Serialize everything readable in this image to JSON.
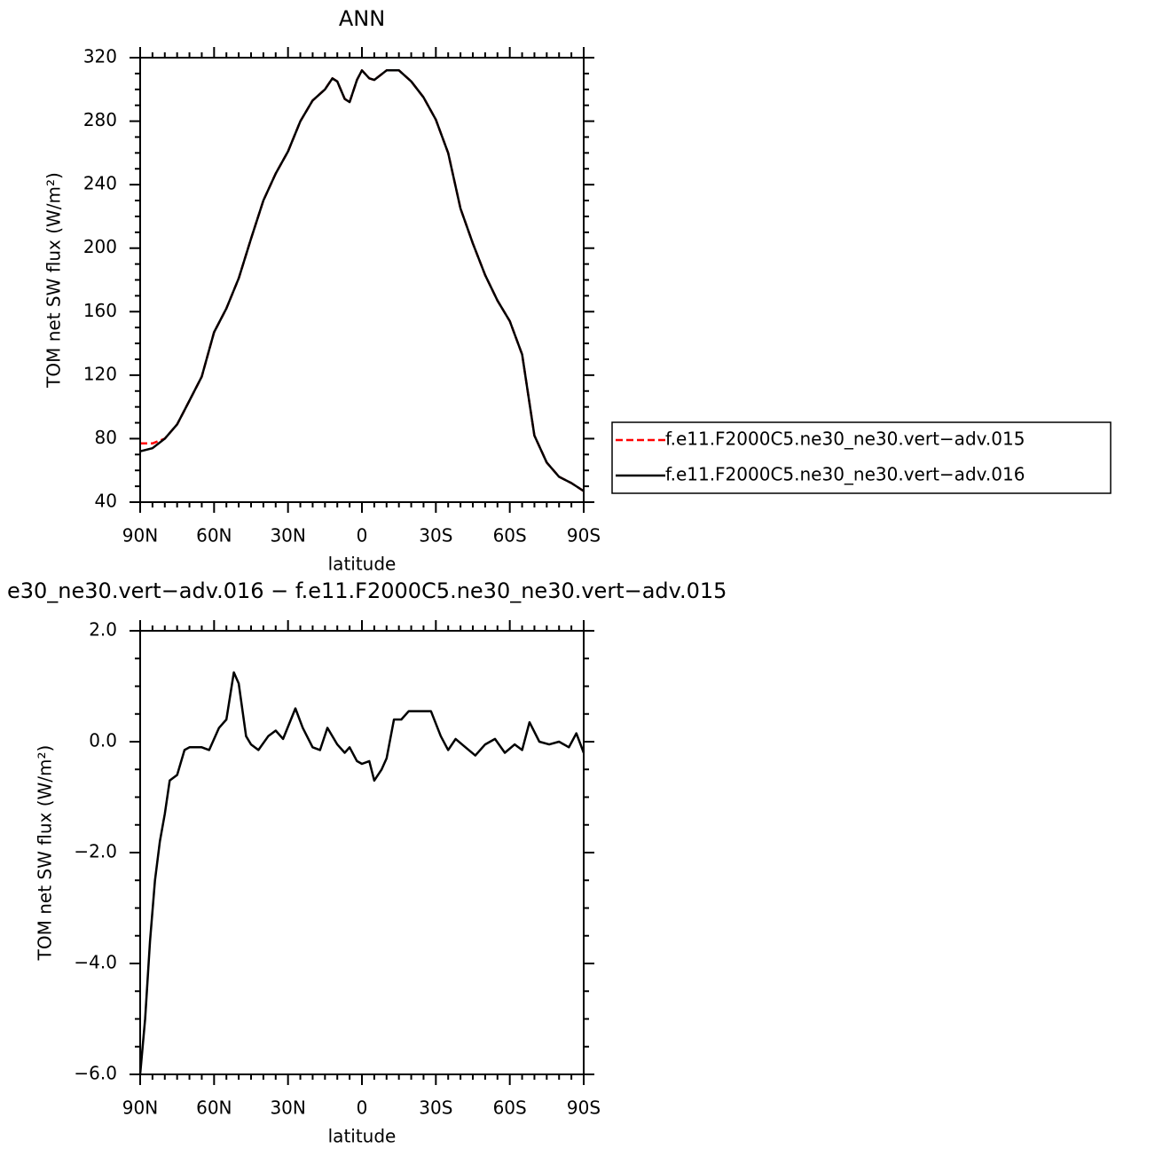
{
  "chart_data": [
    {
      "type": "line",
      "title": "ANN",
      "xlabel": "latitude",
      "ylabel": "TOM net SW flux (W/m²)",
      "x": [
        90,
        85,
        80,
        75,
        70,
        65,
        60,
        55,
        50,
        45,
        40,
        35,
        30,
        25,
        20,
        15,
        12,
        10,
        7,
        5,
        2,
        0,
        -3,
        -5,
        -10,
        -15,
        -20,
        -25,
        -30,
        -35,
        -40,
        -45,
        -50,
        -55,
        -60,
        -65,
        -70,
        -75,
        -80,
        -85,
        -90
      ],
      "series": [
        {
          "name": "f.e11.F2000C5.ne30_ne30.vert−adv.015",
          "color": "#ff0000",
          "dash": true,
          "values": [
            77,
            77,
            80,
            89,
            104,
            119,
            147,
            162,
            181,
            206,
            230,
            247,
            261,
            280,
            293,
            300,
            307,
            305,
            294,
            292,
            306,
            312,
            307,
            306,
            312,
            312,
            305,
            295,
            281,
            260,
            225,
            203,
            183,
            167,
            154,
            133,
            82,
            65,
            56,
            52,
            47
          ]
        },
        {
          "name": "f.e11.F2000C5.ne30_ne30.vert−adv.016",
          "color": "#000000",
          "dash": false,
          "values": [
            72,
            74,
            80,
            89,
            104,
            119,
            147,
            162,
            181,
            206,
            230,
            247,
            261,
            280,
            293,
            300,
            307,
            305,
            294,
            292,
            306,
            312,
            307,
            306,
            312,
            312,
            305,
            295,
            281,
            260,
            225,
            203,
            183,
            167,
            154,
            133,
            82,
            65,
            56,
            52,
            47
          ]
        }
      ],
      "xlim": [
        90,
        -90
      ],
      "ylim": [
        40,
        320
      ],
      "xticks": [
        {
          "value": 90,
          "label": "90N"
        },
        {
          "value": 60,
          "label": "60N"
        },
        {
          "value": 30,
          "label": "30N"
        },
        0,
        {
          "value": -30,
          "label": "30S"
        },
        {
          "value": -60,
          "label": "60S"
        },
        {
          "value": -90,
          "label": "90S"
        }
      ],
      "yticks": [
        40,
        80,
        120,
        160,
        200,
        240,
        280,
        320
      ],
      "xminor": [
        85,
        80,
        75,
        70,
        65,
        55,
        50,
        45,
        40,
        35,
        25,
        20,
        15,
        10,
        5,
        -5,
        -10,
        -15,
        -20,
        -25,
        -35,
        -40,
        -45,
        -50,
        -55,
        -65,
        -70,
        -75,
        -80,
        -85
      ],
      "yminor": [
        50,
        60,
        70,
        90,
        100,
        110,
        130,
        140,
        150,
        170,
        180,
        190,
        210,
        220,
        230,
        250,
        260,
        270,
        290,
        300,
        310
      ],
      "legend": "right"
    },
    {
      "type": "line",
      "title": "e30_ne30.vert−adv.016 − f.e11.F2000C5.ne30_ne30.vert−adv.015",
      "xlabel": "latitude",
      "ylabel": "TOM net SW flux (W/m²)",
      "x": [
        90,
        88,
        86,
        84,
        82,
        80,
        78,
        75,
        72,
        70,
        65,
        62,
        58,
        55,
        52,
        50,
        47,
        45,
        42,
        38,
        35,
        32,
        27,
        24,
        20,
        17,
        14,
        10,
        7,
        5,
        2,
        0,
        -3,
        -5,
        -8,
        -10,
        -13,
        -16,
        -19,
        -22,
        -25,
        -28,
        -32,
        -35,
        -38,
        -42,
        -46,
        -50,
        -54,
        -58,
        -62,
        -65,
        -68,
        -72,
        -76,
        -80,
        -84,
        -87,
        -90
      ],
      "series": [
        {
          "color": "#000000",
          "dash": false,
          "values": [
            -6.0,
            -5.0,
            -3.6,
            -2.5,
            -1.8,
            -1.3,
            -0.7,
            -0.6,
            -0.15,
            -0.1,
            -0.1,
            -0.15,
            0.25,
            0.4,
            1.25,
            1.05,
            0.1,
            -0.05,
            -0.15,
            0.1,
            0.2,
            0.05,
            0.6,
            0.25,
            -0.1,
            -0.15,
            0.25,
            -0.05,
            -0.2,
            -0.1,
            -0.35,
            -0.4,
            -0.35,
            -0.7,
            -0.5,
            -0.3,
            0.4,
            0.4,
            0.55,
            0.55,
            0.55,
            0.55,
            0.1,
            -0.15,
            0.05,
            -0.1,
            -0.25,
            -0.05,
            0.05,
            -0.2,
            -0.05,
            -0.15,
            0.35,
            0,
            -0.05,
            0,
            -0.1,
            0.15,
            -0.2
          ]
        }
      ],
      "xlim": [
        90,
        -90
      ],
      "ylim": [
        -6,
        2
      ],
      "xticks": [
        {
          "value": 90,
          "label": "90N"
        },
        {
          "value": 60,
          "label": "60N"
        },
        {
          "value": 30,
          "label": "30N"
        },
        0,
        {
          "value": -30,
          "label": "30S"
        },
        {
          "value": -60,
          "label": "60S"
        },
        {
          "value": -90,
          "label": "90S"
        }
      ],
      "yticks": [
        {
          "value": -6,
          "label": "−6.0"
        },
        {
          "value": -4,
          "label": "−4.0"
        },
        {
          "value": -2,
          "label": "−2.0"
        },
        {
          "value": 0,
          "label": "0.0"
        },
        {
          "value": 2,
          "label": "2.0"
        }
      ],
      "xminor": [
        85,
        80,
        75,
        70,
        65,
        55,
        50,
        45,
        40,
        35,
        25,
        20,
        15,
        10,
        5,
        -5,
        -10,
        -15,
        -20,
        -25,
        -35,
        -40,
        -45,
        -50,
        -55,
        -65,
        -70,
        -75,
        -80,
        -85
      ],
      "yminor": [
        -5.5,
        -5,
        -4.5,
        -3.5,
        -3,
        -2.5,
        -1.5,
        -1,
        -0.5,
        0.5,
        1,
        1.5
      ]
    }
  ]
}
